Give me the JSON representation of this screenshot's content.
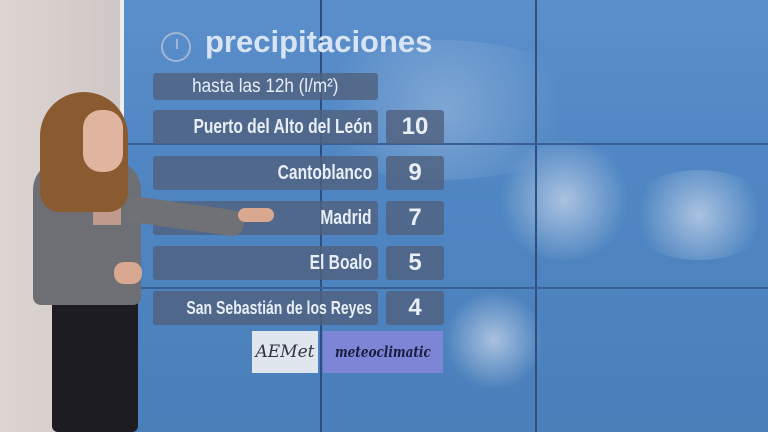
{
  "graphic": {
    "title": "precipitaciones",
    "title_icon": "clock-icon",
    "subtitle": "hasta las 12h (l/m²)",
    "rows": [
      {
        "location": "Puerto del Alto del León",
        "value": "10"
      },
      {
        "location": "Cantoblanco",
        "value": "9"
      },
      {
        "location": "Madrid",
        "value": "7"
      },
      {
        "location": "El Boalo",
        "value": "5"
      },
      {
        "location": "San Sebastián de los Reyes",
        "value": "4"
      }
    ],
    "logos": [
      "AEMet",
      "meteoclimatic"
    ],
    "colors": {
      "screen": "#4f86c3",
      "box": "#50607d",
      "text": "#e8eef6"
    }
  }
}
